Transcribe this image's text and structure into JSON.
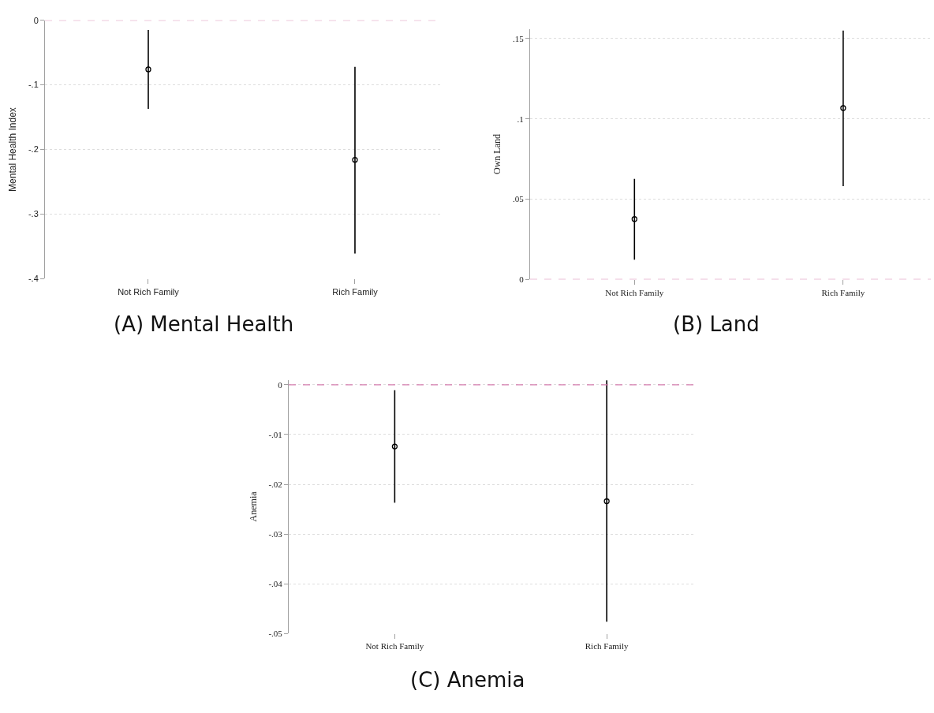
{
  "chart_data": [
    {
      "type": "scatter",
      "title": "(A) Mental Health",
      "ylabel": "Mental Health Index",
      "categories": [
        "Not Rich Family",
        "Rich Family"
      ],
      "series": [
        {
          "color": "#000000",
          "values": [
            -0.076,
            -0.216
          ],
          "errors": [
            [
              -0.137,
              -0.015
            ],
            [
              -0.361,
              -0.072
            ]
          ]
        }
      ],
      "ylim": [
        -0.4,
        0
      ],
      "yticks": [
        {
          "value": -0.4,
          "label": "-.4"
        },
        {
          "value": -0.3,
          "label": "-.3"
        },
        {
          "value": -0.2,
          "label": "-.2"
        },
        {
          "value": -0.1,
          "label": "-.1"
        },
        0
      ],
      "ref_lines": [
        {
          "axis": "y",
          "value": 0,
          "color": "#d67fb0",
          "line_style": "dashed"
        }
      ],
      "grid": "y",
      "marker": "circle"
    },
    {
      "type": "scatter",
      "title": "(B) Land",
      "ylabel": "Own Land",
      "categories": [
        "Not Rich Family",
        "Rich Family"
      ],
      "series": [
        {
          "color": "#000000",
          "values": [
            0.0376,
            0.1067
          ],
          "errors": [
            [
              0.0123,
              0.0626
            ],
            [
              0.0581,
              0.155
            ]
          ]
        }
      ],
      "ylim": [
        0,
        0.156
      ],
      "yticks": [
        0,
        {
          "value": 0.05,
          "label": ".05"
        },
        {
          "value": 0.1,
          "label": ".1"
        },
        {
          "value": 0.15,
          "label": ".15"
        }
      ],
      "ref_lines": [
        {
          "axis": "y",
          "value": 0,
          "color": "#d67fb0",
          "line_style": "dashed"
        }
      ],
      "grid": "y",
      "marker": "circle"
    },
    {
      "type": "scatter",
      "title": "(C) Anemia",
      "ylabel": "Anemia",
      "categories": [
        "Not Rich Family",
        "Rich Family"
      ],
      "series": [
        {
          "color": "#000000",
          "values": [
            -0.0124,
            -0.0234
          ],
          "errors": [
            [
              -0.0237,
              -0.0011
            ],
            [
              -0.0476,
              0.0009
            ]
          ]
        }
      ],
      "ylim": [
        -0.05,
        0.001
      ],
      "yticks": [
        {
          "value": -0.05,
          "label": "-.05"
        },
        {
          "value": -0.04,
          "label": "-.04"
        },
        {
          "value": -0.03,
          "label": "-.03"
        },
        {
          "value": -0.02,
          "label": "-.02"
        },
        {
          "value": -0.01,
          "label": "-.01"
        },
        0
      ],
      "ref_lines": [
        {
          "axis": "y",
          "value": 0,
          "color": "#d67fb0",
          "line_style": "dashed"
        }
      ],
      "grid": "y",
      "marker": "circle"
    }
  ]
}
